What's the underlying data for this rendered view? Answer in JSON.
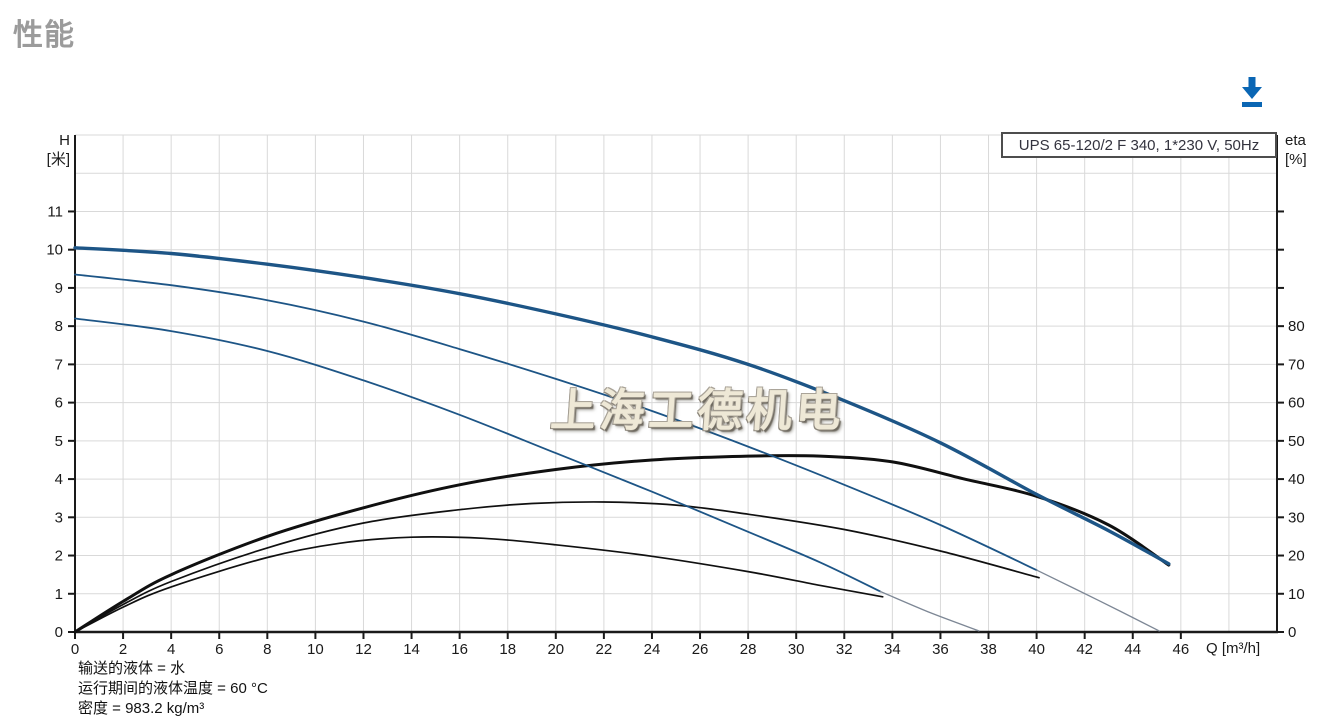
{
  "page": {
    "title": "性能"
  },
  "toolbar": {
    "download_tooltip": "下载"
  },
  "watermark": {
    "text": "上海工德机电"
  },
  "axes_labels": {
    "left_line1": "H",
    "left_line2": "[米]",
    "right_line1": "eta",
    "right_line2": "[%]",
    "x_label": "Q [m³/h]"
  },
  "legend": {
    "label": "UPS 65-120/2 F 340, 1*230 V, 50Hz"
  },
  "footer": {
    "lines": [
      "输送的液体 = 水",
      "运行期间的液体温度 = 60 °C",
      "密度 = 983.2 kg/m³"
    ]
  },
  "colors": {
    "curve_blue": "#1d5586",
    "curve_gray_tail": "#7d8795",
    "curve_black": "#101010",
    "grid": "#d9d9d9",
    "axis": "#1a1a1a",
    "tick_text": "#1a1a1a",
    "accent_blue": "#0a66b4",
    "title_gray": "#9b9b9b"
  },
  "chart_data": {
    "type": "line",
    "title": "UPS 65-120/2 F 340, 1*230 V, 50Hz",
    "xlabel": "Q [m³/h]",
    "ylabel_left": "H [米]",
    "ylabel_right": "eta [%]",
    "x_range": [
      0,
      50
    ],
    "y_left_range": [
      0,
      13
    ],
    "y_right_range": [
      0,
      130
    ],
    "grid": true,
    "x_grid_step": 2,
    "y_grid_step": 1,
    "x_ticks": [
      0,
      2,
      4,
      6,
      8,
      10,
      12,
      14,
      16,
      18,
      20,
      22,
      24,
      26,
      28,
      30,
      32,
      34,
      36,
      38,
      40,
      42,
      44,
      46
    ],
    "y_left_ticks": [
      0,
      1,
      2,
      3,
      4,
      5,
      6,
      7,
      8,
      9,
      10,
      11
    ],
    "y_right_ticks": [
      0,
      10,
      20,
      30,
      40,
      50,
      60,
      70,
      80
    ],
    "y_right_tick_marks": [
      0,
      10,
      20,
      30,
      40,
      50,
      60,
      70,
      80,
      90,
      100,
      110
    ],
    "legend_position": "top-right",
    "series": [
      {
        "name": "eta-speed1",
        "axis": "right",
        "unit": "%",
        "color": "#101010",
        "width": 1.7,
        "points": [
          [
            0,
            0
          ],
          [
            2,
            6.5
          ],
          [
            4,
            11.8
          ],
          [
            8,
            19.5
          ],
          [
            11,
            23.2
          ],
          [
            14,
            24.8
          ],
          [
            17,
            24.5
          ],
          [
            20,
            22.8
          ],
          [
            24,
            19.8
          ],
          [
            28,
            15.8
          ],
          [
            31,
            12.2
          ],
          [
            33.6,
            9.2
          ]
        ]
      },
      {
        "name": "eta-speed2",
        "axis": "right",
        "unit": "%",
        "color": "#101010",
        "width": 1.7,
        "points": [
          [
            0,
            0
          ],
          [
            2,
            7.2
          ],
          [
            4,
            13.2
          ],
          [
            8,
            22.0
          ],
          [
            12,
            28.5
          ],
          [
            16,
            32.0
          ],
          [
            19,
            33.6
          ],
          [
            22,
            34.0
          ],
          [
            25,
            33.2
          ],
          [
            28,
            30.8
          ],
          [
            32,
            26.8
          ],
          [
            36,
            21.2
          ],
          [
            40.1,
            14.2
          ]
        ]
      },
      {
        "name": "eta-speed3",
        "axis": "right",
        "unit": "%",
        "color": "#101010",
        "width": 3,
        "points": [
          [
            0,
            0
          ],
          [
            2,
            8.0
          ],
          [
            4,
            15.0
          ],
          [
            8,
            25.0
          ],
          [
            12,
            32.5
          ],
          [
            16,
            38.5
          ],
          [
            20,
            42.5
          ],
          [
            24,
            45.0
          ],
          [
            28,
            46.0
          ],
          [
            31,
            46.0
          ],
          [
            34,
            44.5
          ],
          [
            37,
            40.0
          ],
          [
            40,
            35.5
          ],
          [
            43,
            28.0
          ],
          [
            45.5,
            17.5
          ]
        ]
      },
      {
        "name": "head-speed1",
        "axis": "left",
        "unit": "米",
        "color": "#1d5586",
        "width": 1.8,
        "points": [
          [
            0,
            8.2
          ],
          [
            4,
            7.87
          ],
          [
            8,
            7.35
          ],
          [
            12,
            6.58
          ],
          [
            16,
            5.68
          ],
          [
            20,
            4.68
          ],
          [
            24,
            3.67
          ],
          [
            28,
            2.62
          ],
          [
            31,
            1.82
          ],
          [
            33.5,
            1.06
          ]
        ]
      },
      {
        "name": "head-speed1-tail",
        "axis": "left",
        "unit": "米",
        "color": "#7d8795",
        "width": 1.3,
        "points": [
          [
            33.5,
            1.06
          ],
          [
            35.6,
            0.5
          ],
          [
            37.6,
            0.03
          ]
        ]
      },
      {
        "name": "head-speed2",
        "axis": "left",
        "unit": "米",
        "color": "#1d5586",
        "width": 1.8,
        "points": [
          [
            0,
            9.35
          ],
          [
            4,
            9.07
          ],
          [
            8,
            8.68
          ],
          [
            12,
            8.12
          ],
          [
            16,
            7.4
          ],
          [
            20,
            6.62
          ],
          [
            24,
            5.78
          ],
          [
            28,
            4.85
          ],
          [
            32,
            3.85
          ],
          [
            36,
            2.8
          ],
          [
            40,
            1.62
          ]
        ]
      },
      {
        "name": "head-speed2-tail",
        "axis": "left",
        "unit": "米",
        "color": "#7d8795",
        "width": 1.3,
        "points": [
          [
            40,
            1.62
          ],
          [
            42.6,
            0.82
          ],
          [
            45.1,
            0.03
          ]
        ]
      },
      {
        "name": "head-speed3",
        "axis": "left",
        "unit": "米",
        "color": "#1d5586",
        "width": 3.4,
        "points": [
          [
            0,
            10.05
          ],
          [
            4,
            9.9
          ],
          [
            8,
            9.62
          ],
          [
            12,
            9.27
          ],
          [
            16,
            8.85
          ],
          [
            20,
            8.32
          ],
          [
            24,
            7.72
          ],
          [
            28,
            7.0
          ],
          [
            32,
            6.05
          ],
          [
            36,
            4.95
          ],
          [
            40,
            3.6
          ],
          [
            43,
            2.65
          ],
          [
            45.5,
            1.78
          ]
        ]
      }
    ]
  }
}
